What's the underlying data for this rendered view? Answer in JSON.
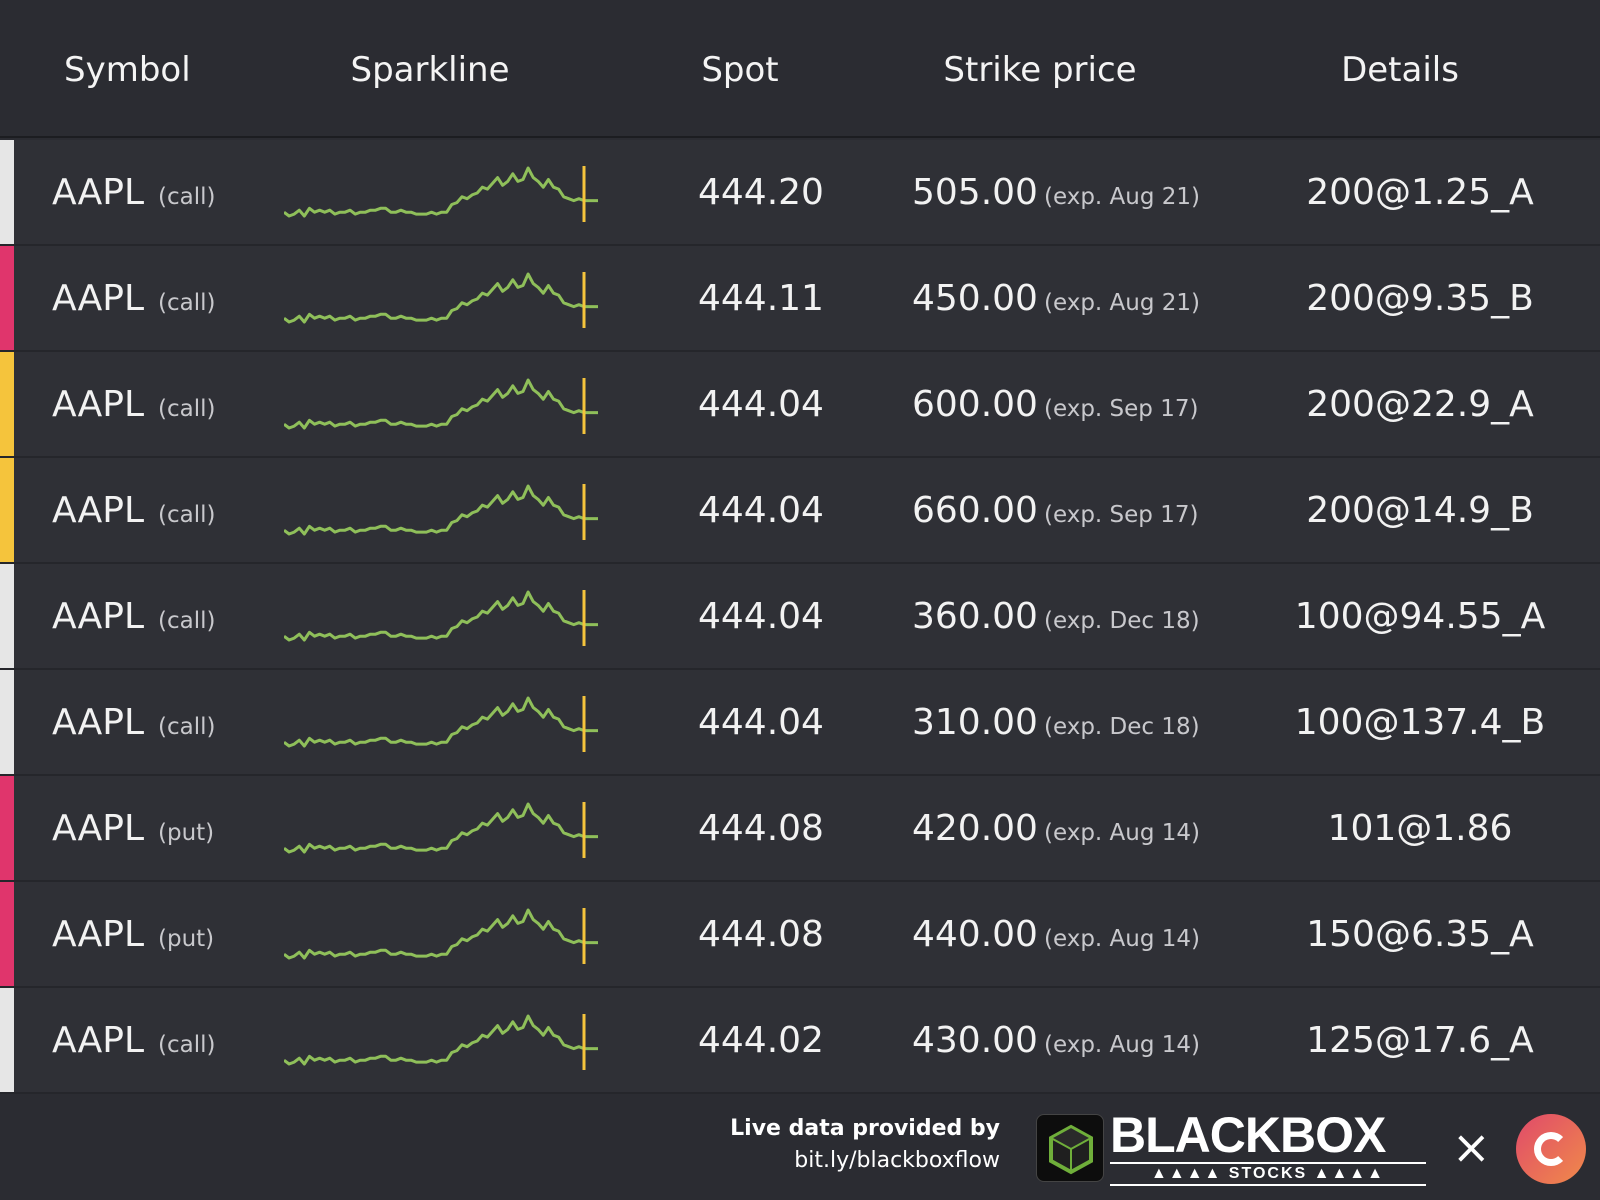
{
  "header": {
    "symbol": "Symbol",
    "sparkline": "Sparkline",
    "spot": "Spot",
    "strike": "Strike price",
    "details": "Details"
  },
  "colors": {
    "white": "#e6e6e6",
    "pink": "#e0356c",
    "yellow": "#f5c43c",
    "spark_line": "#8fbf5a",
    "spark_marker": "#f5c43c"
  },
  "rows": [
    {
      "symbol": "AAPL",
      "type": "(call)",
      "spot": "444.20",
      "strike": "505.00",
      "exp": "(exp. Aug 21)",
      "details": "200@1.25_A",
      "stripe": "#e6e6e6"
    },
    {
      "symbol": "AAPL",
      "type": "(call)",
      "spot": "444.11",
      "strike": "450.00",
      "exp": "(exp. Aug 21)",
      "details": "200@9.35_B",
      "stripe": "#e0356c"
    },
    {
      "symbol": "AAPL",
      "type": "(call)",
      "spot": "444.04",
      "strike": "600.00",
      "exp": "(exp. Sep 17)",
      "details": "200@22.9_A",
      "stripe": "#f5c43c"
    },
    {
      "symbol": "AAPL",
      "type": "(call)",
      "spot": "444.04",
      "strike": "660.00",
      "exp": "(exp. Sep 17)",
      "details": "200@14.9_B",
      "stripe": "#f5c43c"
    },
    {
      "symbol": "AAPL",
      "type": "(call)",
      "spot": "444.04",
      "strike": "360.00",
      "exp": "(exp. Dec 18)",
      "details": "100@94.55_A",
      "stripe": "#e6e6e6"
    },
    {
      "symbol": "AAPL",
      "type": "(call)",
      "spot": "444.04",
      "strike": "310.00",
      "exp": "(exp. Dec 18)",
      "details": "100@137.4_B",
      "stripe": "#e6e6e6"
    },
    {
      "symbol": "AAPL",
      "type": "(put)",
      "spot": "444.08",
      "strike": "420.00",
      "exp": "(exp. Aug 14)",
      "details": "101@1.86",
      "stripe": "#e0356c"
    },
    {
      "symbol": "AAPL",
      "type": "(put)",
      "spot": "444.08",
      "strike": "440.00",
      "exp": "(exp. Aug 14)",
      "details": "150@6.35_A",
      "stripe": "#e0356c"
    },
    {
      "symbol": "AAPL",
      "type": "(call)",
      "spot": "444.02",
      "strike": "430.00",
      "exp": "(exp. Aug 14)",
      "details": "125@17.6_A",
      "stripe": "#e6e6e6"
    }
  ],
  "sparkline_values": [
    3,
    1,
    2,
    4,
    1,
    5,
    3,
    4,
    3,
    4,
    2,
    3,
    3,
    4,
    2,
    3,
    3,
    4,
    4,
    5,
    5,
    3,
    3,
    4,
    3,
    3,
    2,
    2,
    2,
    3,
    2,
    3,
    3,
    7,
    8,
    11,
    10,
    12,
    13,
    16,
    15,
    18,
    21,
    17,
    19,
    23,
    19,
    20,
    26,
    21,
    19,
    16,
    20,
    16,
    15,
    11,
    10,
    9,
    10,
    9
  ],
  "footer": {
    "credit_line1": "Live data provided by",
    "credit_line2": "bit.ly/blackboxflow",
    "brand": "BLACKBOX",
    "brand_sub": "▲▲▲▲ STOCKS ▲▲▲▲",
    "separator": "×"
  }
}
